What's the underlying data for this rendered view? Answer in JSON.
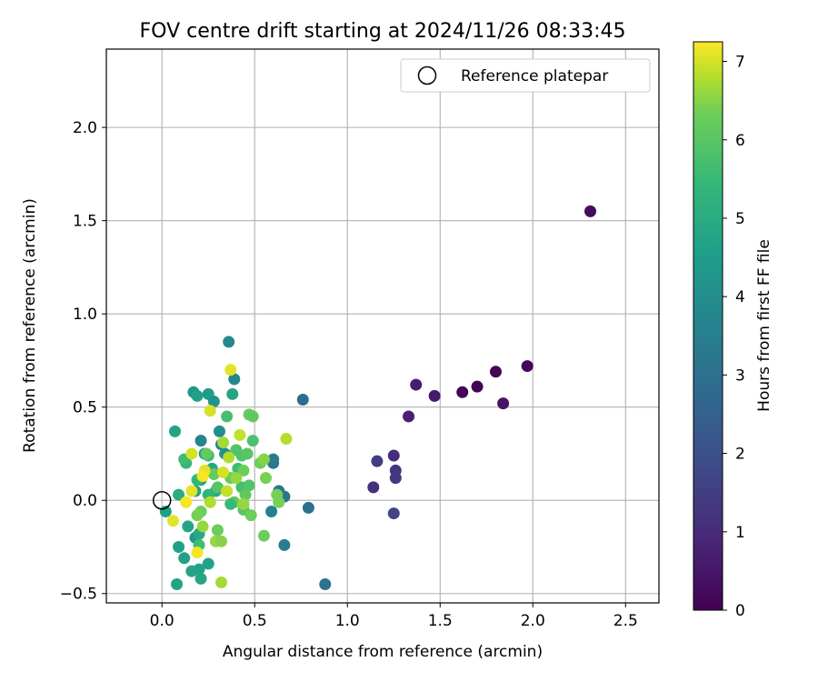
{
  "chart_data": {
    "type": "scatter",
    "title": "FOV centre drift starting at 2024/11/26 08:33:45",
    "xlabel": "Angular distance from reference (arcmin)",
    "ylabel": "Rotation from reference (arcmin)",
    "xlim": [
      -0.3,
      2.68
    ],
    "ylim": [
      -0.55,
      2.42
    ],
    "xticks": [
      0.0,
      0.5,
      1.0,
      1.5,
      2.0,
      2.5
    ],
    "xtick_labels": [
      "0.0",
      "0.5",
      "1.0",
      "1.5",
      "2.0",
      "2.5"
    ],
    "yticks": [
      -0.5,
      0.0,
      0.5,
      1.0,
      1.5,
      2.0
    ],
    "ytick_labels": [
      "−0.5",
      "0.0",
      "0.5",
      "1.0",
      "1.5",
      "2.0"
    ],
    "grid": true,
    "legend": {
      "placement": "top-right",
      "entries": [
        "Reference platepar"
      ]
    },
    "reference_point": {
      "x": 0.0,
      "y": 0.0,
      "marker": "open-circle"
    },
    "colorbar": {
      "label": "Hours from first FF file",
      "colormap": "viridis",
      "range": [
        0,
        7.25
      ],
      "ticks": [
        0,
        1,
        2,
        3,
        4,
        5,
        6,
        7
      ],
      "tick_labels": [
        "0",
        "1",
        "2",
        "3",
        "4",
        "5",
        "6",
        "7"
      ]
    },
    "points": [
      {
        "x": 2.31,
        "y": 1.55,
        "t": 0.25
      },
      {
        "x": 1.97,
        "y": 0.72,
        "t": 0.15
      },
      {
        "x": 1.8,
        "y": 0.69,
        "t": 0.05
      },
      {
        "x": 1.7,
        "y": 0.61,
        "t": 0.05
      },
      {
        "x": 1.62,
        "y": 0.58,
        "t": 0.05
      },
      {
        "x": 1.84,
        "y": 0.52,
        "t": 0.45
      },
      {
        "x": 1.47,
        "y": 0.56,
        "t": 0.55
      },
      {
        "x": 1.37,
        "y": 0.62,
        "t": 0.65
      },
      {
        "x": 1.33,
        "y": 0.45,
        "t": 0.75
      },
      {
        "x": 1.25,
        "y": 0.24,
        "t": 1.05
      },
      {
        "x": 1.26,
        "y": 0.16,
        "t": 1.25
      },
      {
        "x": 1.26,
        "y": 0.12,
        "t": 1.35
      },
      {
        "x": 1.16,
        "y": 0.21,
        "t": 1.45
      },
      {
        "x": 1.14,
        "y": 0.07,
        "t": 1.15
      },
      {
        "x": 1.25,
        "y": -0.07,
        "t": 1.65
      },
      {
        "x": 0.76,
        "y": 0.54,
        "t": 2.85
      },
      {
        "x": 0.79,
        "y": -0.04,
        "t": 2.95
      },
      {
        "x": 0.88,
        "y": -0.45,
        "t": 3.05
      },
      {
        "x": 0.66,
        "y": 0.02,
        "t": 3.1
      },
      {
        "x": 0.66,
        "y": -0.24,
        "t": 3.5
      },
      {
        "x": 0.63,
        "y": 0.05,
        "t": 3.2
      },
      {
        "x": 0.6,
        "y": 0.2,
        "t": 3.3
      },
      {
        "x": 0.6,
        "y": 0.22,
        "t": 3.4
      },
      {
        "x": 0.59,
        "y": -0.06,
        "t": 3.6
      },
      {
        "x": 0.36,
        "y": 0.85,
        "t": 3.9
      },
      {
        "x": 0.39,
        "y": 0.65,
        "t": 3.8
      },
      {
        "x": 0.38,
        "y": 0.57,
        "t": 4.8
      },
      {
        "x": 0.17,
        "y": 0.58,
        "t": 4.3
      },
      {
        "x": 0.19,
        "y": 0.56,
        "t": 4.6
      },
      {
        "x": 0.25,
        "y": 0.57,
        "t": 4.5
      },
      {
        "x": 0.28,
        "y": 0.53,
        "t": 4.2
      },
      {
        "x": 0.07,
        "y": 0.37,
        "t": 4.7
      },
      {
        "x": 0.31,
        "y": 0.37,
        "t": 4.0
      },
      {
        "x": 0.21,
        "y": 0.32,
        "t": 3.7
      },
      {
        "x": 0.32,
        "y": 0.3,
        "t": 3.6
      },
      {
        "x": 0.34,
        "y": 0.25,
        "t": 4.1
      },
      {
        "x": 0.23,
        "y": 0.25,
        "t": 4.4
      },
      {
        "x": 0.27,
        "y": 0.17,
        "t": 4.9
      },
      {
        "x": 0.21,
        "y": 0.11,
        "t": 4.6
      },
      {
        "x": 0.18,
        "y": 0.05,
        "t": 4.8
      },
      {
        "x": 0.29,
        "y": 0.05,
        "t": 5.0
      },
      {
        "x": 0.09,
        "y": 0.03,
        "t": 5.1
      },
      {
        "x": 0.02,
        "y": -0.06,
        "t": 4.6
      },
      {
        "x": 0.25,
        "y": 0.03,
        "t": 5.3
      },
      {
        "x": 0.14,
        "y": -0.14,
        "t": 4.8
      },
      {
        "x": 0.18,
        "y": -0.2,
        "t": 4.2
      },
      {
        "x": 0.2,
        "y": -0.18,
        "t": 4.9
      },
      {
        "x": 0.09,
        "y": -0.25,
        "t": 4.6
      },
      {
        "x": 0.12,
        "y": -0.31,
        "t": 4.6
      },
      {
        "x": 0.25,
        "y": -0.34,
        "t": 4.7
      },
      {
        "x": 0.16,
        "y": -0.38,
        "t": 4.8
      },
      {
        "x": 0.2,
        "y": -0.37,
        "t": 4.7
      },
      {
        "x": 0.21,
        "y": -0.42,
        "t": 4.8
      },
      {
        "x": 0.08,
        "y": -0.45,
        "t": 4.7
      },
      {
        "x": 0.2,
        "y": -0.24,
        "t": 5.6
      },
      {
        "x": 0.13,
        "y": 0.2,
        "t": 5.4
      },
      {
        "x": 0.12,
        "y": 0.22,
        "t": 5.6
      },
      {
        "x": 0.25,
        "y": 0.24,
        "t": 5.5
      },
      {
        "x": 0.19,
        "y": 0.11,
        "t": 5.4
      },
      {
        "x": 0.35,
        "y": 0.45,
        "t": 5.7
      },
      {
        "x": 0.47,
        "y": 0.46,
        "t": 6.2
      },
      {
        "x": 0.49,
        "y": 0.45,
        "t": 6.1
      },
      {
        "x": 0.49,
        "y": 0.32,
        "t": 5.8
      },
      {
        "x": 0.4,
        "y": 0.27,
        "t": 5.9
      },
      {
        "x": 0.43,
        "y": 0.24,
        "t": 5.9
      },
      {
        "x": 0.46,
        "y": 0.25,
        "t": 6.0
      },
      {
        "x": 0.41,
        "y": 0.17,
        "t": 5.6
      },
      {
        "x": 0.44,
        "y": 0.16,
        "t": 6.3
      },
      {
        "x": 0.37,
        "y": 0.12,
        "t": 6.2
      },
      {
        "x": 0.43,
        "y": 0.07,
        "t": 5.7
      },
      {
        "x": 0.47,
        "y": 0.08,
        "t": 5.9
      },
      {
        "x": 0.45,
        "y": 0.03,
        "t": 6.1
      },
      {
        "x": 0.39,
        "y": -0.01,
        "t": 6.2
      },
      {
        "x": 0.37,
        "y": -0.02,
        "t": 5.5
      },
      {
        "x": 0.44,
        "y": -0.05,
        "t": 6.0
      },
      {
        "x": 0.48,
        "y": -0.08,
        "t": 6.3
      },
      {
        "x": 0.44,
        "y": -0.02,
        "t": 6.6
      },
      {
        "x": 0.53,
        "y": 0.2,
        "t": 6.3
      },
      {
        "x": 0.56,
        "y": 0.12,
        "t": 6.4
      },
      {
        "x": 0.55,
        "y": 0.22,
        "t": 6.5
      },
      {
        "x": 0.62,
        "y": 0.03,
        "t": 6.4
      },
      {
        "x": 0.55,
        "y": -0.19,
        "t": 6.3
      },
      {
        "x": 0.67,
        "y": 0.33,
        "t": 6.8
      },
      {
        "x": 0.63,
        "y": -0.01,
        "t": 6.4
      },
      {
        "x": 0.24,
        "y": 0.25,
        "t": 6.2
      },
      {
        "x": 0.28,
        "y": 0.14,
        "t": 6.2
      },
      {
        "x": 0.3,
        "y": 0.07,
        "t": 6.0
      },
      {
        "x": 0.29,
        "y": -0.22,
        "t": 6.6
      },
      {
        "x": 0.32,
        "y": -0.22,
        "t": 6.5
      },
      {
        "x": 0.3,
        "y": -0.16,
        "t": 6.3
      },
      {
        "x": 0.21,
        "y": -0.06,
        "t": 6.3
      },
      {
        "x": 0.19,
        "y": -0.08,
        "t": 6.4
      },
      {
        "x": 0.22,
        "y": -0.14,
        "t": 6.6
      },
      {
        "x": 0.32,
        "y": -0.44,
        "t": 6.7
      },
      {
        "x": 0.26,
        "y": 0.48,
        "t": 7.0
      },
      {
        "x": 0.37,
        "y": 0.7,
        "t": 7.1
      },
      {
        "x": 0.16,
        "y": 0.25,
        "t": 7.0
      },
      {
        "x": 0.23,
        "y": 0.16,
        "t": 7.1
      },
      {
        "x": 0.22,
        "y": 0.13,
        "t": 7.2
      },
      {
        "x": 0.16,
        "y": 0.05,
        "t": 7.1
      },
      {
        "x": 0.13,
        "y": -0.01,
        "t": 7.2
      },
      {
        "x": 0.06,
        "y": -0.11,
        "t": 7.1
      },
      {
        "x": 0.19,
        "y": -0.28,
        "t": 7.2
      },
      {
        "x": 0.33,
        "y": 0.15,
        "t": 7.0
      },
      {
        "x": 0.35,
        "y": 0.05,
        "t": 6.9
      },
      {
        "x": 0.36,
        "y": 0.23,
        "t": 6.8
      },
      {
        "x": 0.42,
        "y": 0.35,
        "t": 6.9
      },
      {
        "x": 0.33,
        "y": 0.31,
        "t": 6.7
      },
      {
        "x": 0.4,
        "y": 0.12,
        "t": 6.6
      },
      {
        "x": 0.26,
        "y": -0.01,
        "t": 6.8
      }
    ]
  }
}
